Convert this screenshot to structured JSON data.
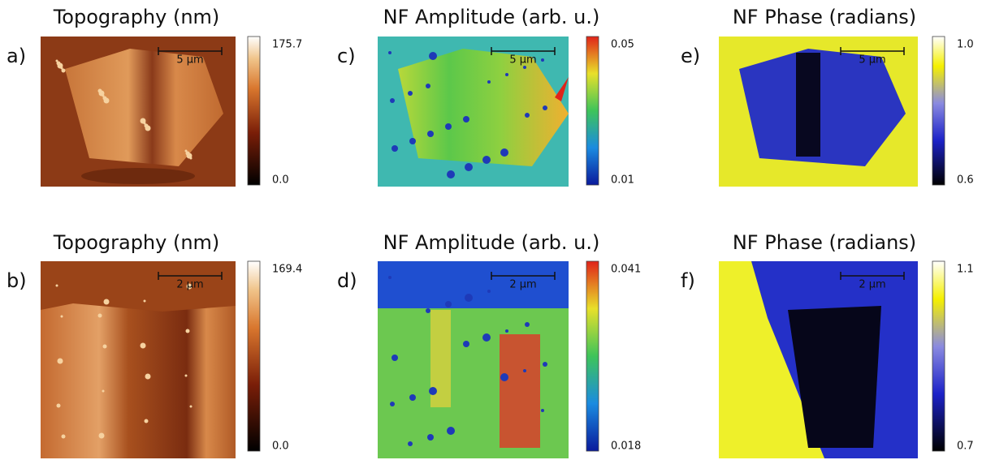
{
  "panels": [
    {
      "label": "a)",
      "title": "Topography (nm)",
      "scale_bar": "5 µm",
      "colorbar": {
        "max": "175.7",
        "min": "0.0"
      }
    },
    {
      "label": "b)",
      "title": "Topography (nm)",
      "scale_bar": "2 µm",
      "colorbar": {
        "max": "169.4",
        "min": "0.0"
      }
    },
    {
      "label": "c)",
      "title": "NF Amplitude (arb. u.)",
      "scale_bar": "5 µm",
      "colorbar": {
        "max": "0.05",
        "min": "0.01"
      }
    },
    {
      "label": "d)",
      "title": "NF Amplitude (arb. u.)",
      "scale_bar": "2 µm",
      "colorbar": {
        "max": "0.041",
        "min": "0.018"
      }
    },
    {
      "label": "e)",
      "title": "NF Phase (radians)",
      "scale_bar": "5 µm",
      "colorbar": {
        "max": "1.0",
        "min": "0.6"
      }
    },
    {
      "label": "f)",
      "title": "NF Phase (radians)",
      "scale_bar": "2 µm",
      "colorbar": {
        "max": "1.1",
        "min": "0.7"
      }
    }
  ]
}
